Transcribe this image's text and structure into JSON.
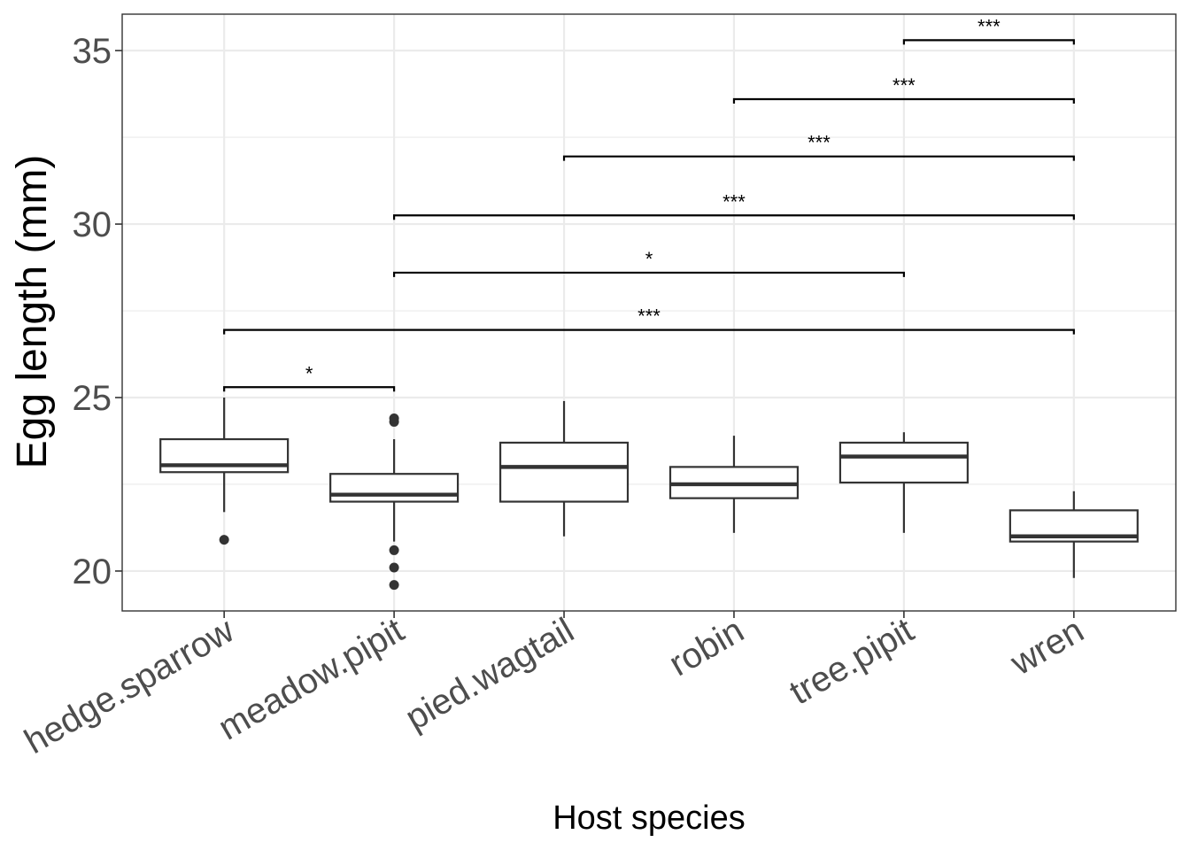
{
  "chart_data": {
    "type": "box",
    "xlabel": "Host species",
    "ylabel": "Egg length (mm)",
    "ylim": [
      18.85,
      36.05
    ],
    "yticks": [
      20,
      25,
      30,
      35
    ],
    "grid": true,
    "categories": [
      "hedge.sparrow",
      "meadow.pipit",
      "pied.wagtail",
      "robin",
      "tree.pipit",
      "wren"
    ],
    "boxes": [
      {
        "category": "hedge.sparrow",
        "whisker_low": 21.7,
        "q1": 22.85,
        "median": 23.05,
        "q3": 23.8,
        "whisker_high": 25.0,
        "outliers": [
          20.9
        ]
      },
      {
        "category": "meadow.pipit",
        "whisker_low": 20.85,
        "q1": 22.0,
        "median": 22.2,
        "q3": 22.8,
        "whisker_high": 23.8,
        "outliers": [
          24.3,
          24.4,
          20.6,
          20.1,
          19.6
        ]
      },
      {
        "category": "pied.wagtail",
        "whisker_low": 21.0,
        "q1": 22.0,
        "median": 23.0,
        "q3": 23.7,
        "whisker_high": 24.9,
        "outliers": []
      },
      {
        "category": "robin",
        "whisker_low": 21.1,
        "q1": 22.1,
        "median": 22.5,
        "q3": 23.0,
        "whisker_high": 23.9,
        "outliers": []
      },
      {
        "category": "tree.pipit",
        "whisker_low": 21.1,
        "q1": 22.55,
        "median": 23.3,
        "q3": 23.7,
        "whisker_high": 24.0,
        "outliers": []
      },
      {
        "category": "wren",
        "whisker_low": 19.8,
        "q1": 20.85,
        "median": 21.0,
        "q3": 21.75,
        "whisker_high": 22.3,
        "outliers": []
      }
    ],
    "comparisons": [
      {
        "group1": "hedge.sparrow",
        "group2": "meadow.pipit",
        "y": 25.3,
        "label": "*"
      },
      {
        "group1": "hedge.sparrow",
        "group2": "wren",
        "y": 26.95,
        "label": "***"
      },
      {
        "group1": "meadow.pipit",
        "group2": "tree.pipit",
        "y": 28.6,
        "label": "*"
      },
      {
        "group1": "meadow.pipit",
        "group2": "wren",
        "y": 30.25,
        "label": "***"
      },
      {
        "group1": "pied.wagtail",
        "group2": "wren",
        "y": 31.95,
        "label": "***"
      },
      {
        "group1": "robin",
        "group2": "wren",
        "y": 33.6,
        "label": "***"
      },
      {
        "group1": "tree.pipit",
        "group2": "wren",
        "y": 35.3,
        "label": "***"
      }
    ]
  }
}
